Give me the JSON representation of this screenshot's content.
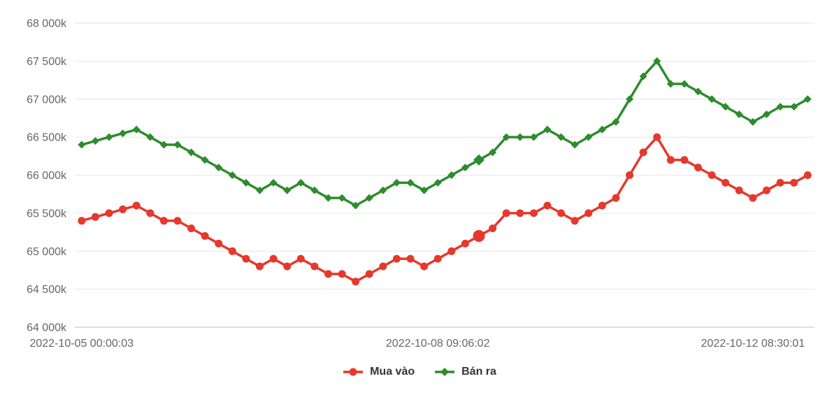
{
  "chart_data": {
    "type": "line",
    "title": "",
    "grid": "on",
    "legend_position": "bottom-center",
    "y_axis": {
      "min": 64000,
      "max": 68000,
      "tick_step": 500,
      "unit": "k",
      "ticks": [
        {
          "value": 68000,
          "label": "68 000k"
        },
        {
          "value": 67500,
          "label": "67 500k"
        },
        {
          "value": 67000,
          "label": "67 000k"
        },
        {
          "value": 66500,
          "label": "66 500k"
        },
        {
          "value": 66000,
          "label": "66 000k"
        },
        {
          "value": 65500,
          "label": "65 500k"
        },
        {
          "value": 65000,
          "label": "65 000k"
        },
        {
          "value": 64500,
          "label": "64 500k"
        },
        {
          "value": 64000,
          "label": "64 000k"
        }
      ]
    },
    "x_axis": {
      "ticks": [
        {
          "point_index": 0,
          "label": "2022-10-05 00:00:03"
        },
        {
          "point_index": 26,
          "label": "2022-10-08 09:06:02"
        },
        {
          "point_index": 49,
          "label": "2022-10-12 08:30:01"
        }
      ]
    },
    "highlight_point_index": 29,
    "series": [
      {
        "name": "Mua vào",
        "color": "#e6382c",
        "marker": "circle",
        "values": [
          65400,
          65450,
          65500,
          65550,
          65600,
          65500,
          65400,
          65400,
          65300,
          65200,
          65100,
          65000,
          64900,
          64800,
          64900,
          64800,
          64900,
          64800,
          64700,
          64700,
          64600,
          64700,
          64800,
          64900,
          64900,
          64800,
          64900,
          65000,
          65100,
          65200,
          65300,
          65500,
          65500,
          65500,
          65600,
          65500,
          65400,
          65500,
          65600,
          65700,
          66000,
          66300,
          66500,
          66200,
          66200,
          66100,
          66000,
          65900,
          65800,
          65700,
          65800,
          65900,
          65900,
          66000
        ]
      },
      {
        "name": "Bán ra",
        "color": "#2d8c2d",
        "marker": "diamond",
        "values": [
          66400,
          66450,
          66500,
          66550,
          66600,
          66500,
          66400,
          66400,
          66300,
          66200,
          66100,
          66000,
          65900,
          65800,
          65900,
          65800,
          65900,
          65800,
          65700,
          65700,
          65600,
          65700,
          65800,
          65900,
          65900,
          65800,
          65900,
          66000,
          66100,
          66200,
          66300,
          66500,
          66500,
          66500,
          66600,
          66500,
          66400,
          66500,
          66600,
          66700,
          67000,
          67300,
          67500,
          67200,
          67200,
          67100,
          67000,
          66900,
          66800,
          66700,
          66800,
          66900,
          66900,
          67000
        ]
      }
    ],
    "colors": {
      "grid": "#e6e6e6",
      "axis_line": "#ccd6eb",
      "axis_label": "#666666",
      "legend_text": "#333333",
      "background": "#ffffff"
    }
  }
}
